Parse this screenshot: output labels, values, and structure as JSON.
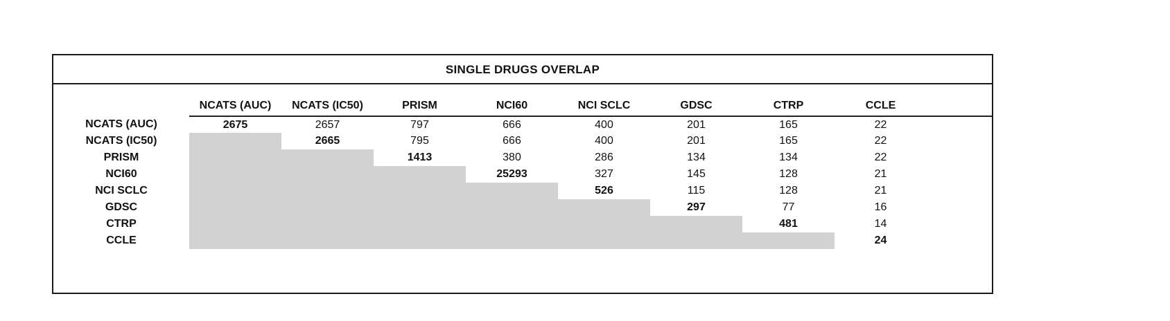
{
  "title": "SINGLE DRUGS OVERLAP",
  "colors": {
    "background": "#ffffff",
    "border": "#1a1a1a",
    "shaded_cell": "#d2d2d2",
    "text": "#111111"
  },
  "chart_data": {
    "type": "table",
    "title": "SINGLE DRUGS OVERLAP",
    "columns": [
      "NCATS (AUC)",
      "NCATS (IC50)",
      "PRISM",
      "NCI60",
      "NCI SCLC",
      "GDSC",
      "CTRP",
      "CCLE"
    ],
    "rows": [
      "NCATS (AUC)",
      "NCATS (IC50)",
      "PRISM",
      "NCI60",
      "NCI SCLC",
      "GDSC",
      "CTRP",
      "CCLE"
    ],
    "matrix": [
      [
        2675,
        2657,
        797,
        666,
        400,
        201,
        165,
        22
      ],
      [
        null,
        2665,
        795,
        666,
        400,
        201,
        165,
        22
      ],
      [
        null,
        null,
        1413,
        380,
        286,
        134,
        134,
        22
      ],
      [
        null,
        null,
        null,
        25293,
        327,
        145,
        128,
        21
      ],
      [
        null,
        null,
        null,
        null,
        526,
        115,
        128,
        21
      ],
      [
        null,
        null,
        null,
        null,
        null,
        297,
        77,
        16
      ],
      [
        null,
        null,
        null,
        null,
        null,
        null,
        481,
        14
      ],
      [
        null,
        null,
        null,
        null,
        null,
        null,
        null,
        24
      ]
    ],
    "layout_hints": {
      "diagonal_style": "bold",
      "lower_triangle": "shaded-empty",
      "header_underline": true,
      "gridlines": false
    }
  }
}
